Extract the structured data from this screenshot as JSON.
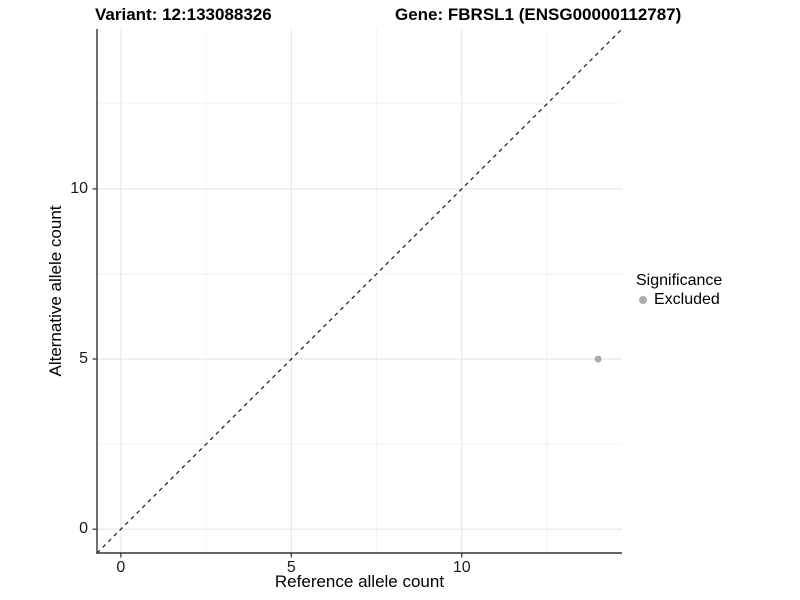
{
  "chart_data": {
    "type": "scatter",
    "title_left": "Variant: 12:133088326",
    "title_right": "Gene: FBRSL1 (ENSG00000112787)",
    "xlabel": "Reference allele count",
    "ylabel": "Alternative allele count",
    "xlim": [
      -0.7,
      14.7
    ],
    "ylim": [
      -0.7,
      14.7
    ],
    "x_ticks": [
      0,
      5,
      10
    ],
    "y_ticks": [
      0,
      5,
      10
    ],
    "x_minor_gridlines": [
      2.5,
      7.5,
      12.5
    ],
    "y_minor_gridlines": [
      2.5,
      7.5,
      12.5
    ],
    "grid": "major and minor gridlines, light gray on white panel",
    "reference_line": {
      "equation": "y = x",
      "style": "dashed"
    },
    "series": [
      {
        "name": "Excluded",
        "points": [
          {
            "x": 14,
            "y": 5
          }
        ]
      }
    ],
    "legend": {
      "position": "right",
      "title": "Significance",
      "items": [
        {
          "label": "Excluded"
        }
      ]
    }
  },
  "colors": {
    "background": "#ffffff",
    "grid_major": "#e6e6e6",
    "grid_minor": "#f2f2f2",
    "axis_line": "#333333",
    "tick_mark": "#333333",
    "point": "#ababab",
    "reference_line": "#1a1a1a"
  }
}
